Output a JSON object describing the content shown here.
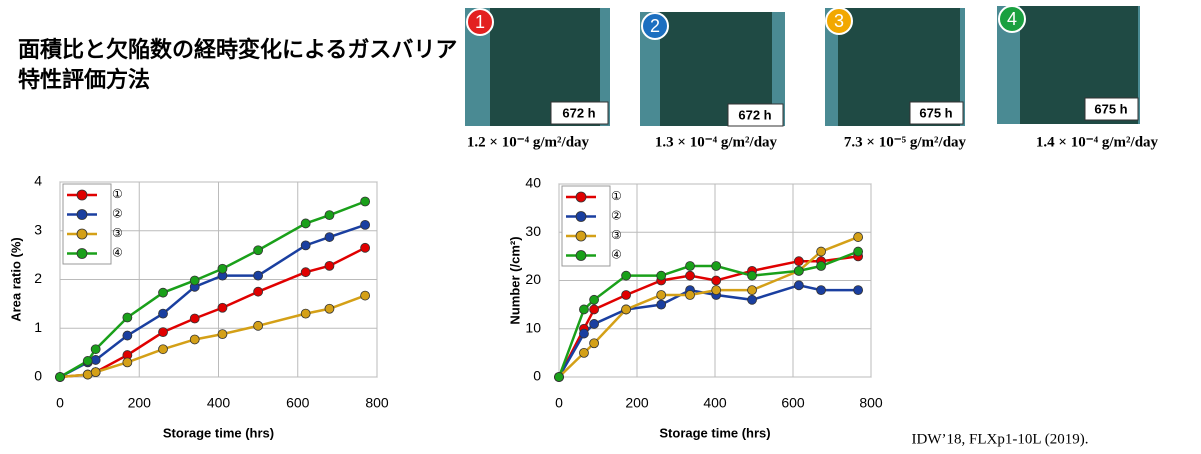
{
  "title": "面積比と欠陥数の経時変化によるガスバリア特性評価方法",
  "images": [
    {
      "badge": "1",
      "time": "672 h",
      "wvtr": "1.2 × 10⁻⁴ g/m²/day"
    },
    {
      "badge": "2",
      "time": "672 h",
      "wvtr": "1.3 × 10⁻⁴ g/m²/day"
    },
    {
      "badge": "3",
      "time": "675 h",
      "wvtr": "7.3 × 10⁻⁵ g/m²/day"
    },
    {
      "badge": "4",
      "time": "675 h",
      "wvtr": "1.4 × 10⁻⁴ g/m²/day"
    }
  ],
  "citation": "IDW’18, FLXp1-10L (2019).",
  "chart_data": [
    {
      "type": "line",
      "xlabel": "Storage time (hrs)",
      "ylabel": "Area ratio (%)",
      "x": [
        0,
        70,
        90,
        170,
        260,
        340,
        410,
        500,
        620,
        680,
        770
      ],
      "xlim": [
        0,
        800
      ],
      "xticks": [
        0,
        200,
        400,
        600,
        800
      ],
      "ylim": [
        0,
        4
      ],
      "yticks": [
        0,
        1,
        2,
        3,
        4
      ],
      "grid": true,
      "legend": "upper left",
      "series": [
        {
          "name": "①",
          "color": "#e00000",
          "values": [
            0,
            0.05,
            0.1,
            0.45,
            0.92,
            1.2,
            1.42,
            1.75,
            2.15,
            2.28,
            2.65
          ]
        },
        {
          "name": "②",
          "color": "#1a3fa0",
          "values": [
            0,
            0.3,
            0.35,
            0.85,
            1.3,
            1.85,
            2.08,
            2.08,
            2.7,
            2.87,
            3.12
          ]
        },
        {
          "name": "③",
          "color": "#d4a017",
          "values": [
            0,
            0.05,
            0.1,
            0.3,
            0.57,
            0.77,
            0.88,
            1.05,
            1.3,
            1.4,
            1.67
          ]
        },
        {
          "name": "④",
          "color": "#1aa01a",
          "values": [
            0,
            0.33,
            0.57,
            1.22,
            1.73,
            1.98,
            2.22,
            2.6,
            3.15,
            3.32,
            3.6
          ]
        }
      ]
    },
    {
      "type": "line",
      "xlabel": "Storage time (hrs)",
      "ylabel": "Number (/cm²)",
      "x": [
        0,
        64,
        90,
        172,
        262,
        336,
        403,
        495,
        615,
        672,
        767
      ],
      "xlim": [
        0,
        800
      ],
      "xticks": [
        0,
        200,
        400,
        600,
        800
      ],
      "ylim": [
        0,
        40
      ],
      "yticks": [
        0,
        10,
        20,
        30,
        40
      ],
      "grid": true,
      "legend": "upper left",
      "series": [
        {
          "name": "①",
          "color": "#e00000",
          "values": [
            0,
            10,
            14,
            17,
            20,
            21,
            20,
            22,
            24,
            24,
            25
          ]
        },
        {
          "name": "②",
          "color": "#1a3fa0",
          "values": [
            0,
            9,
            11,
            14,
            15,
            18,
            17,
            16,
            19,
            18,
            18
          ]
        },
        {
          "name": "③",
          "color": "#d4a017",
          "values": [
            0,
            5,
            7,
            14,
            17,
            17,
            18,
            18,
            22,
            26,
            29
          ]
        },
        {
          "name": "④",
          "color": "#1aa01a",
          "values": [
            0,
            14,
            16,
            21,
            21,
            23,
            23,
            21,
            22,
            23,
            26
          ]
        }
      ]
    }
  ]
}
